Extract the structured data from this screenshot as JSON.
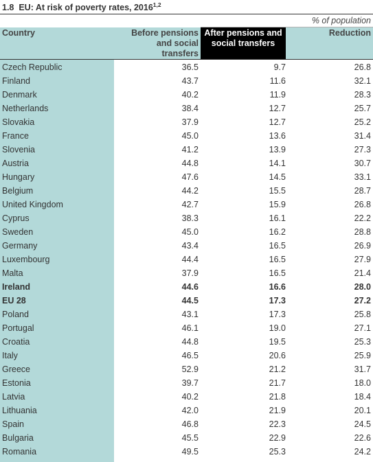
{
  "title": {
    "number": "1.8",
    "text": "EU: At risk of poverty rates, 2016",
    "superscript": "1,2"
  },
  "unit": "% of population",
  "headers": {
    "country": "Country",
    "before": [
      "Before pensions",
      "and social",
      "transfers"
    ],
    "after": [
      "After pensions and",
      "social transfers"
    ],
    "reduction": "Reduction"
  },
  "rows": [
    {
      "country": "Czech Republic",
      "before": "36.5",
      "after": "9.7",
      "reduction": "26.8"
    },
    {
      "country": "Finland",
      "before": "43.7",
      "after": "11.6",
      "reduction": "32.1"
    },
    {
      "country": "Denmark",
      "before": "40.2",
      "after": "11.9",
      "reduction": "28.3"
    },
    {
      "country": "Netherlands",
      "before": "38.4",
      "after": "12.7",
      "reduction": "25.7"
    },
    {
      "country": "Slovakia",
      "before": "37.9",
      "after": "12.7",
      "reduction": "25.2"
    },
    {
      "country": "France",
      "before": "45.0",
      "after": "13.6",
      "reduction": "31.4"
    },
    {
      "country": "Slovenia",
      "before": "41.2",
      "after": "13.9",
      "reduction": "27.3"
    },
    {
      "country": "Austria",
      "before": "44.8",
      "after": "14.1",
      "reduction": "30.7"
    },
    {
      "country": "Hungary",
      "before": "47.6",
      "after": "14.5",
      "reduction": "33.1"
    },
    {
      "country": "Belgium",
      "before": "44.2",
      "after": "15.5",
      "reduction": "28.7"
    },
    {
      "country": "United Kingdom",
      "before": "42.7",
      "after": "15.9",
      "reduction": "26.8"
    },
    {
      "country": "Cyprus",
      "before": "38.3",
      "after": "16.1",
      "reduction": "22.2"
    },
    {
      "country": "Sweden",
      "before": "45.0",
      "after": "16.2",
      "reduction": "28.8"
    },
    {
      "country": "Germany",
      "before": "43.4",
      "after": "16.5",
      "reduction": "26.9"
    },
    {
      "country": "Luxembourg",
      "before": "44.4",
      "after": "16.5",
      "reduction": "27.9"
    },
    {
      "country": "Malta",
      "before": "37.9",
      "after": "16.5",
      "reduction": "21.4"
    },
    {
      "country": "Ireland",
      "before": "44.6",
      "after": "16.6",
      "reduction": "28.0",
      "bold": true
    },
    {
      "country": "EU 28",
      "before": "44.5",
      "after": "17.3",
      "reduction": "27.2",
      "bold": true
    },
    {
      "country": "Poland",
      "before": "43.1",
      "after": "17.3",
      "reduction": "25.8"
    },
    {
      "country": "Portugal",
      "before": "46.1",
      "after": "19.0",
      "reduction": "27.1"
    },
    {
      "country": "Croatia",
      "before": "44.8",
      "after": "19.5",
      "reduction": "25.3"
    },
    {
      "country": "Italy",
      "before": "46.5",
      "after": "20.6",
      "reduction": "25.9"
    },
    {
      "country": "Greece",
      "before": "52.9",
      "after": "21.2",
      "reduction": "31.7"
    },
    {
      "country": "Estonia",
      "before": "39.7",
      "after": "21.7",
      "reduction": "18.0"
    },
    {
      "country": "Latvia",
      "before": "40.2",
      "after": "21.8",
      "reduction": "18.4"
    },
    {
      "country": "Lithuania",
      "before": "42.0",
      "after": "21.9",
      "reduction": "20.1"
    },
    {
      "country": "Spain",
      "before": "46.8",
      "after": "22.3",
      "reduction": "24.5"
    },
    {
      "country": "Bulgaria",
      "before": "45.5",
      "after": "22.9",
      "reduction": "22.6"
    },
    {
      "country": "Romania",
      "before": "49.5",
      "after": "25.3",
      "reduction": "24.2"
    }
  ]
}
